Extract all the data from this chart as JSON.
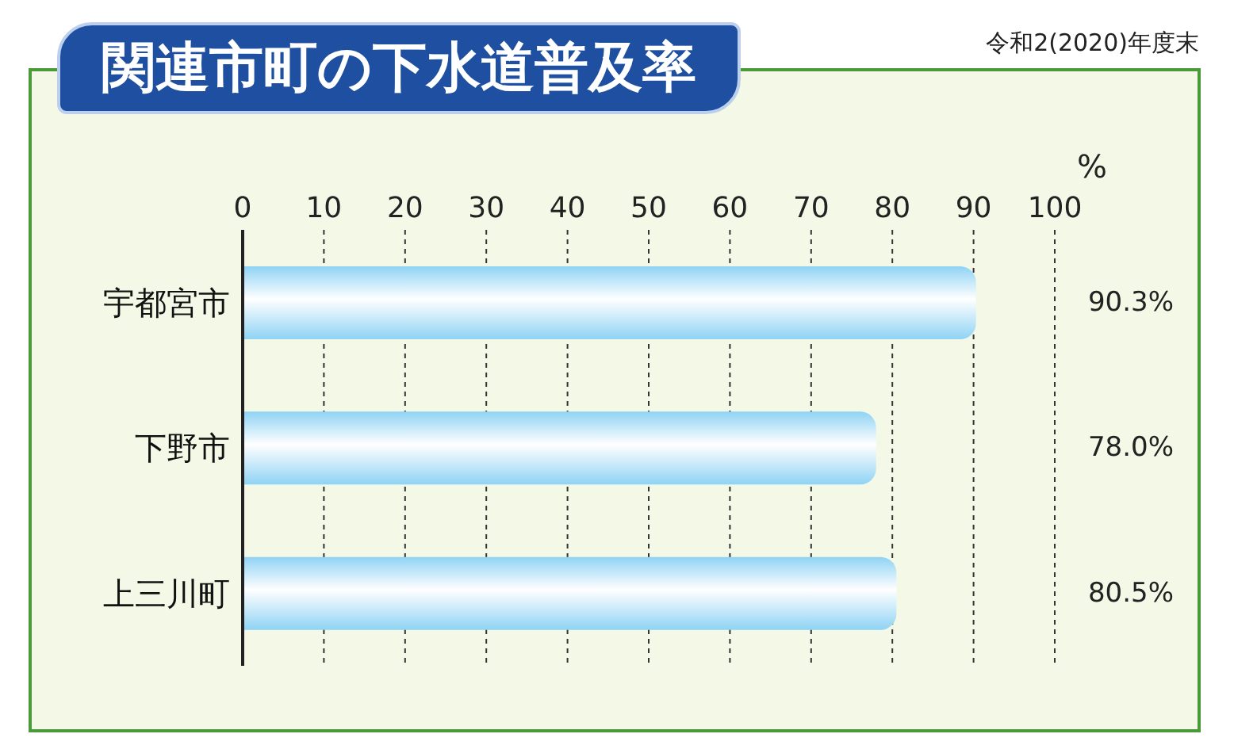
{
  "chart_data": {
    "type": "bar",
    "orientation": "horizontal",
    "title": "関連市町の下水道普及率",
    "subtitle": "令和2(2020)年度末",
    "xlabel": "%",
    "categories": [
      "宇都宮市",
      "下野市",
      "上三川町"
    ],
    "values": [
      90.3,
      78.0,
      80.5
    ],
    "value_labels": [
      "90.3%",
      "78.0%",
      "80.5%"
    ],
    "color": "#8fd3f4",
    "xlim": [
      0,
      100
    ],
    "xticks": [
      0,
      10,
      20,
      30,
      40,
      50,
      60,
      70,
      80,
      90,
      100
    ],
    "grid": "x"
  }
}
